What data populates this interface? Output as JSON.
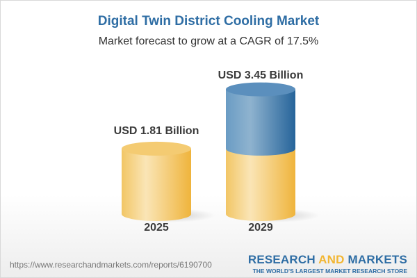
{
  "title": "Digital Twin District Cooling Market",
  "subtitle": "Market forecast to grow at a CAGR of 17.5%",
  "chart_data": {
    "type": "bar",
    "style": "3d-cylinder",
    "categories": [
      "2025",
      "2029"
    ],
    "values": [
      1.81,
      3.45
    ],
    "value_labels": [
      "USD 1.81 Billion",
      "USD 3.45 Billion"
    ],
    "unit": "USD Billion",
    "colors": {
      "base": "#f2c25a",
      "growth": "#3a78ad"
    }
  },
  "footer": {
    "url": "https://www.researchandmarkets.com/reports/6190700",
    "logo_left": "RESEARCH",
    "logo_and": "AND",
    "logo_right": "MARKETS",
    "tagline": "THE WORLD'S LARGEST MARKET RESEARCH STORE"
  }
}
